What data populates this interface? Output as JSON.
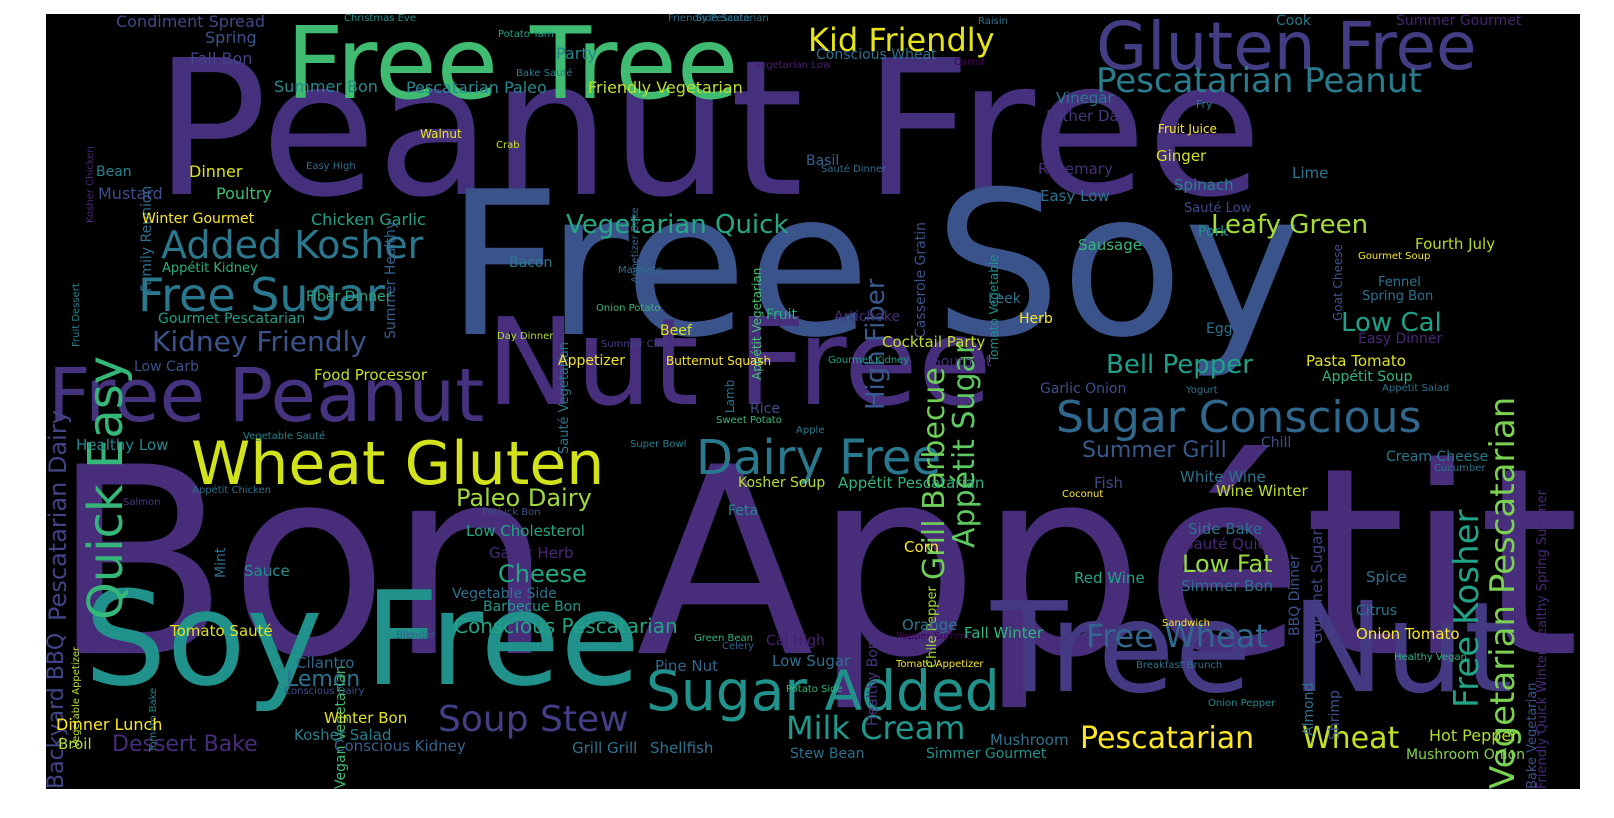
{
  "words": [
    {
      "text": "Bon Appétit",
      "color": "#482d7a"
    },
    {
      "text": "Peanut Free",
      "color": "#44307d"
    },
    {
      "text": "Free Soy",
      "color": "#3a538b"
    },
    {
      "text": "Nut Free",
      "color": "#472f7d"
    },
    {
      "text": "Free Tree",
      "color": "#3fbc72"
    },
    {
      "text": "Gluten Free",
      "color": "#433e84"
    },
    {
      "text": "Tree Nut",
      "color": "#443a83"
    },
    {
      "text": "Soy Free",
      "color": "#21918c"
    },
    {
      "text": "Free Peanut",
      "color": "#46337f"
    },
    {
      "text": "Wheat Gluten",
      "color": "#d2e21b"
    },
    {
      "text": "Dairy Free",
      "color": "#2a788e"
    },
    {
      "text": "Sugar Added",
      "color": "#21918c"
    },
    {
      "text": "Sugar Conscious",
      "color": "#30678d"
    },
    {
      "text": "Pescatarian Peanut",
      "color": "#287c8e"
    },
    {
      "text": "Added Kosher",
      "color": "#2a778e"
    },
    {
      "text": "Free Sugar",
      "color": "#2a788e"
    },
    {
      "text": "Kid Friendly",
      "color": "#e5e419"
    },
    {
      "text": "Quick Easy",
      "color": "#35b779"
    },
    {
      "text": "Vegetarian Pescatarian",
      "color": "#7ad151"
    },
    {
      "text": "Free Kosher",
      "color": "#20a386"
    },
    {
      "text": "Grill Barbecue",
      "color": "#6ece58"
    },
    {
      "text": "Appétit Sugar",
      "color": "#5ec962"
    },
    {
      "text": "High Fiber",
      "color": "#38598c"
    },
    {
      "text": "Pescatarian Dairy",
      "color": "#414487"
    },
    {
      "text": "Vegetarian Quick",
      "color": "#22a884"
    },
    {
      "text": "Kidney Friendly",
      "color": "#3b528b"
    },
    {
      "text": "Bell Pepper",
      "color": "#1f9e89"
    },
    {
      "text": "Leafy Green",
      "color": "#a5db36"
    },
    {
      "text": "Low Cal",
      "color": "#1fa187"
    },
    {
      "text": "Soup Stew",
      "color": "#433e85"
    },
    {
      "text": "Milk Cream",
      "color": "#1f988b"
    },
    {
      "text": "Free Wheat",
      "color": "#31668e"
    },
    {
      "text": "Pescatarian",
      "color": "#fde725"
    },
    {
      "text": "Wheat",
      "color": "#c2df23"
    },
    {
      "text": "Paleo Dairy",
      "color": "#9fda3a"
    },
    {
      "text": "Cheese",
      "color": "#22a884"
    },
    {
      "text": "Conscious Pescatarian",
      "color": "#20a486"
    },
    {
      "text": "Summer Grill",
      "color": "#38598c"
    },
    {
      "text": "Low Fat",
      "color": "#95d840"
    },
    {
      "text": "Lemon",
      "color": "#2c728e"
    },
    {
      "text": "Dessert Bake",
      "color": "#472d7b"
    },
    {
      "text": "Backyard BBQ",
      "color": "#414487"
    },
    {
      "text": "Condiment Spread",
      "color": "#3e4989"
    },
    {
      "text": "Spring",
      "color": "#3b528b"
    },
    {
      "text": "Fall Bon",
      "color": "#414487"
    },
    {
      "text": "Summer Bon",
      "color": "#228c8d"
    },
    {
      "text": "Pescatarian Paleo",
      "color": "#23898e"
    },
    {
      "text": "Friendly Vegetarian",
      "color": "#bddf26"
    },
    {
      "text": "Party",
      "color": "#25848e"
    },
    {
      "text": "Conscious Wheat",
      "color": "#2c728e"
    },
    {
      "text": "Christmas Eve",
      "color": "#21908d"
    },
    {
      "text": "Potato Yam",
      "color": "#1fa088"
    },
    {
      "text": "Side Sauté",
      "color": "#2c728e"
    },
    {
      "text": "Friendly Pescatarian",
      "color": "#2d718e"
    },
    {
      "text": "Bake Sauté",
      "color": "#297b8e"
    },
    {
      "text": "Vegetarian Low",
      "color": "#482173"
    },
    {
      "text": "Raisin",
      "color": "#2c728e"
    },
    {
      "text": "Carrot",
      "color": "#440154"
    },
    {
      "text": "Cook",
      "color": "#2a778e"
    },
    {
      "text": "Summer Gourmet",
      "color": "#482475"
    },
    {
      "text": "Family Reunion",
      "color": "#2d708e"
    },
    {
      "text": "Bean",
      "color": "#25858e"
    },
    {
      "text": "Dinner",
      "color": "#dde318"
    },
    {
      "text": "Mustard",
      "color": "#3e4c8a"
    },
    {
      "text": "Poultry",
      "color": "#3dbc74"
    },
    {
      "text": "Winter Gourmet",
      "color": "#fde725"
    },
    {
      "text": "Chicken Garlic",
      "color": "#1fa287"
    },
    {
      "text": "Summer Healthy",
      "color": "#355f8d"
    },
    {
      "text": "Walnut",
      "color": "#e7e419"
    },
    {
      "text": "Crab",
      "color": "#c8e020"
    },
    {
      "text": "Easy High",
      "color": "#2d708e"
    },
    {
      "text": "Appetizer Bake",
      "color": "#31668e"
    },
    {
      "text": "Appétit Vegetarian",
      "color": "#46c06f"
    },
    {
      "text": "Casserole Gratin",
      "color": "#3a538b"
    },
    {
      "text": "Tomato Vegetable",
      "color": "#20928c"
    },
    {
      "text": "Basil",
      "color": "#355f8d"
    },
    {
      "text": "Sauté Dinner",
      "color": "#2e6e8e"
    },
    {
      "text": "Appétit Kidney",
      "color": "#29af7f"
    },
    {
      "text": "Fiber Dinner",
      "color": "#25ac82"
    },
    {
      "text": "Gourmet Pescatarian",
      "color": "#1f9e89"
    },
    {
      "text": "Bacon",
      "color": "#297a8e"
    },
    {
      "text": "Sauté Vegetarian",
      "color": "#2a788e"
    },
    {
      "text": "Marinate",
      "color": "#2c728e"
    },
    {
      "text": "Onion Potato",
      "color": "#38b977"
    },
    {
      "text": "Day Dinner",
      "color": "#addc30"
    },
    {
      "text": "Summer Chill",
      "color": "#424186"
    },
    {
      "text": "Fruit",
      "color": "#29af7f"
    },
    {
      "text": "Artichoke",
      "color": "#472d7b"
    },
    {
      "text": "Beef",
      "color": "#dae319"
    },
    {
      "text": "Butternut Squash",
      "color": "#fbe723"
    },
    {
      "text": "Appetizer",
      "color": "#f1e51d"
    },
    {
      "text": "Gourmet Kidney",
      "color": "#1fa188"
    },
    {
      "text": "Cocktail Party",
      "color": "#c0df25"
    },
    {
      "text": "Gourmet",
      "color": "#472c7a"
    },
    {
      "text": "Lamb",
      "color": "#2e6f8e"
    },
    {
      "text": "Rice",
      "color": "#3b528b"
    },
    {
      "text": "Sweet Potato",
      "color": "#37b878"
    },
    {
      "text": "Apple",
      "color": "#297b8e"
    },
    {
      "text": "Super Bowl",
      "color": "#277f8e"
    },
    {
      "text": "Low Carb",
      "color": "#3b518b"
    },
    {
      "text": "Food Processor",
      "color": "#c2df23"
    },
    {
      "text": "Healthy Low",
      "color": "#24868e"
    },
    {
      "text": "Vegetable Sauté",
      "color": "#25848e"
    },
    {
      "text": "Appétit Chicken",
      "color": "#2c718e"
    },
    {
      "text": "Salmon",
      "color": "#453882"
    },
    {
      "text": "Fruit Dessert",
      "color": "#277f8e"
    },
    {
      "text": "Kosher Chicken",
      "color": "#482878"
    },
    {
      "text": "Mint",
      "color": "#2e6e8e"
    },
    {
      "text": "Potluck Bon",
      "color": "#3b528b"
    },
    {
      "text": "Feta",
      "color": "#23898e"
    },
    {
      "text": "Low Cholesterol",
      "color": "#22a785"
    },
    {
      "text": "Garlic Herb",
      "color": "#482878"
    },
    {
      "text": "Sauce",
      "color": "#21918c"
    },
    {
      "text": "Vegetable Side",
      "color": "#2c728e"
    },
    {
      "text": "Barbecue Bon",
      "color": "#1f9a8a"
    },
    {
      "text": "Vegan Vegetarian",
      "color": "#3fbc73"
    },
    {
      "text": "Tomato Sauté",
      "color": "#dde318"
    },
    {
      "text": "Tomato Bake",
      "color": "#25838e"
    },
    {
      "text": "Vegetable Appetizer",
      "color": "#bade28"
    },
    {
      "text": "Blender",
      "color": "#355f8d"
    },
    {
      "text": "Conscious Dairy",
      "color": "#3b518b"
    },
    {
      "text": "Cilantro",
      "color": "#31688e"
    },
    {
      "text": "Green Bean",
      "color": "#2fb47c"
    },
    {
      "text": "Celery",
      "color": "#34608d"
    },
    {
      "text": "Cal High",
      "color": "#482071"
    },
    {
      "text": "Pine Nut",
      "color": "#31668e"
    },
    {
      "text": "Potato Side",
      "color": "#32b67a"
    },
    {
      "text": "Low Sugar",
      "color": "#2d708e"
    },
    {
      "text": "Healthy Bon",
      "color": "#46337f"
    },
    {
      "text": "Pepper Summer",
      "color": "#440154"
    },
    {
      "text": "Tomato Appetizer",
      "color": "#f8e621"
    },
    {
      "text": "Dinner Lunch",
      "color": "#fde725"
    },
    {
      "text": "Winter Bon",
      "color": "#e2e418"
    },
    {
      "text": "Kosher Salad",
      "color": "#287d8e"
    },
    {
      "text": "Broil",
      "color": "#b0dd2f"
    },
    {
      "text": "Conscious Kidney",
      "color": "#33628d"
    },
    {
      "text": "Grill Grill",
      "color": "#2c738e"
    },
    {
      "text": "Shellfish",
      "color": "#2c728e"
    },
    {
      "text": "Stew Bean",
      "color": "#2c728e"
    },
    {
      "text": "Simmer Gourmet",
      "color": "#20928c"
    },
    {
      "text": "Mushroom",
      "color": "#2c728e"
    },
    {
      "text": "Almond",
      "color": "#2c728e"
    },
    {
      "text": "Shrimp",
      "color": "#3b528b"
    },
    {
      "text": "Hot Pepper",
      "color": "#addc30"
    },
    {
      "text": "Mushroom Onion",
      "color": "#84d44b"
    },
    {
      "text": "Onion Pepper",
      "color": "#23888e"
    },
    {
      "text": "Sandwich",
      "color": "#fde725"
    },
    {
      "text": "Breakfast Brunch",
      "color": "#2c728e"
    },
    {
      "text": "Healthy Vegan",
      "color": "#2fb47c"
    },
    {
      "text": "Bake Vegetarian",
      "color": "#3b528b"
    },
    {
      "text": "Friendly Quick Winter Healthy Spring Summer",
      "color": "#482878"
    },
    {
      "text": "Vinegar",
      "color": "#2a788e"
    },
    {
      "text": "Father Day",
      "color": "#453882"
    },
    {
      "text": "Fry",
      "color": "#287d8e"
    },
    {
      "text": "Fruit Juice",
      "color": "#fde725"
    },
    {
      "text": "Ginger",
      "color": "#d5e21a"
    },
    {
      "text": "Rosemary",
      "color": "#472d7b"
    },
    {
      "text": "Lime",
      "color": "#2a788e"
    },
    {
      "text": "Easy Low",
      "color": "#2c728e"
    },
    {
      "text": "Spinach",
      "color": "#25838e"
    },
    {
      "text": "Sauté Low",
      "color": "#3e4989"
    },
    {
      "text": "Goat Cheese",
      "color": "#3b528b"
    },
    {
      "text": "Pork",
      "color": "#21918c"
    },
    {
      "text": "Sausage",
      "color": "#35b779"
    },
    {
      "text": "Fourth July",
      "color": "#b8de29"
    },
    {
      "text": "Gourmet Soup",
      "color": "#f1e51d"
    },
    {
      "text": "Fennel",
      "color": "#2c728e"
    },
    {
      "text": "Spring Bon",
      "color": "#2c728e"
    },
    {
      "text": "Leek",
      "color": "#2c728e"
    },
    {
      "text": "Herb",
      "color": "#fde725"
    },
    {
      "text": "Egg",
      "color": "#2c728e"
    },
    {
      "text": "Easy Dinner",
      "color": "#482878"
    },
    {
      "text": "Pasta Tomato",
      "color": "#dde318"
    },
    {
      "text": "Appétit Soup",
      "color": "#2fb47c"
    },
    {
      "text": "Appétit Salad",
      "color": "#2c728e"
    },
    {
      "text": "Garlic Onion",
      "color": "#3b528b"
    },
    {
      "text": "Yogurt",
      "color": "#2c728e"
    },
    {
      "text": "Chill",
      "color": "#3b528b"
    },
    {
      "text": "Cream Cheese",
      "color": "#2a788e"
    },
    {
      "text": "Cucumber",
      "color": "#2c728e"
    },
    {
      "text": "Fish",
      "color": "#3e4989"
    },
    {
      "text": "Coconut",
      "color": "#fde725"
    },
    {
      "text": "White Wine",
      "color": "#2c728e"
    },
    {
      "text": "Wine Winter",
      "color": "#b8de29"
    },
    {
      "text": "Kosher Soup",
      "color": "#b5de2b"
    },
    {
      "text": "Appétit Pescatarian",
      "color": "#2fb47c"
    },
    {
      "text": "BBQ Dinner",
      "color": "#3b528b"
    },
    {
      "text": "Gourmet Sugar",
      "color": "#414487"
    },
    {
      "text": "Side Bake",
      "color": "#2c728e"
    },
    {
      "text": "Sauté Quick",
      "color": "#482878"
    },
    {
      "text": "Corn",
      "color": "#fde725"
    },
    {
      "text": "Chile Pepper",
      "color": "#a0da39"
    },
    {
      "text": "Red Wine",
      "color": "#20a386"
    },
    {
      "text": "Simmer Bon",
      "color": "#2c728e"
    },
    {
      "text": "Spice",
      "color": "#2c728e"
    },
    {
      "text": "Citrus",
      "color": "#2a788e"
    },
    {
      "text": "Orange",
      "color": "#2a788e"
    },
    {
      "text": "Fall Winter",
      "color": "#2fb47c"
    },
    {
      "text": "Onion Tomato",
      "color": "#fde725"
    }
  ]
}
